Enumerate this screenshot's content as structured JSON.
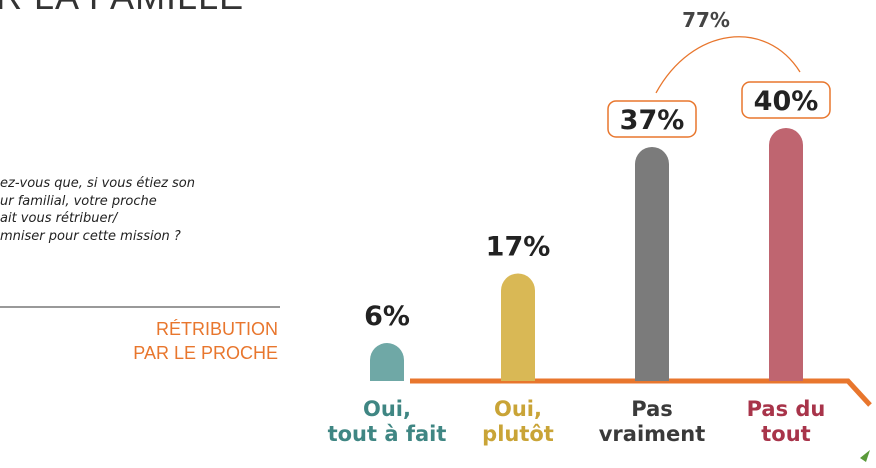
{
  "chart_data": {
    "type": "bar",
    "title": "R LA FAMILLE",
    "question": [
      "ez-vous que, si vous étiez son",
      "ur familial, votre proche",
      "ait vous rétribuer/",
      "mniser pour cette mission ?"
    ],
    "axis_label": "RÉTRIBUTION\nPAR LE PROCHE",
    "categories": [
      "Oui,\ntout à fait",
      "Oui,\nplutôt",
      "Pas\nvraiment",
      "Pas du\ntout"
    ],
    "values": [
      6,
      17,
      37,
      40
    ],
    "value_labels": [
      "6%",
      "17%",
      "37%",
      "40%"
    ],
    "colors": [
      "#6fa8a6",
      "#d9b855",
      "#7b7b7b",
      "#bf6570"
    ],
    "label_colors": [
      "#3f8683",
      "#c9a437",
      "#3a3a3a",
      "#a8344a"
    ],
    "boxed_labels": [
      false,
      false,
      true,
      true
    ],
    "annotation": {
      "value": 77,
      "label": "77%"
    }
  }
}
